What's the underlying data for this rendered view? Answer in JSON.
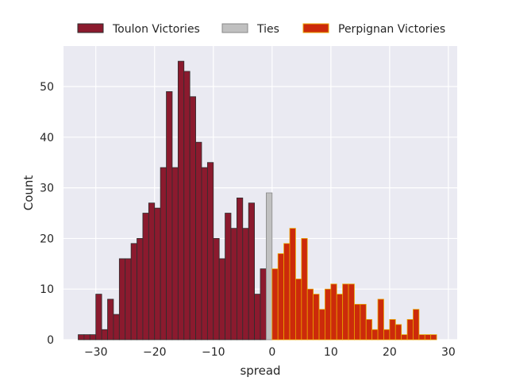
{
  "chart_data": {
    "type": "bar",
    "title": "",
    "xlabel": "spread",
    "ylabel": "Count",
    "xlim": [
      -35.5,
      31.5
    ],
    "ylim": [
      0,
      58
    ],
    "xticks": [
      -30,
      -20,
      -10,
      0,
      10,
      20,
      30
    ],
    "yticks": [
      0,
      10,
      20,
      30,
      40,
      50
    ],
    "grid": true,
    "bin_width": 1,
    "legend": {
      "placement": "top-center, above plot",
      "entries": [
        "Toulon Victories",
        "Ties",
        "Perpignan Victories"
      ]
    },
    "colors": {
      "background": "#eaeaf2",
      "grid": "#ffffff",
      "toulon_fill": "#8b1a2e",
      "toulon_edge": "#2e2e2e",
      "ties_fill": "#c0c0c0",
      "ties_edge": "#888888",
      "perpignan_fill": "#cc2a0b",
      "perpignan_edge": "#e8a400"
    },
    "series": [
      {
        "name": "Toulon Victories",
        "bins": [
          {
            "x": -33,
            "count": 1
          },
          {
            "x": -32,
            "count": 1
          },
          {
            "x": -31,
            "count": 1
          },
          {
            "x": -30,
            "count": 9
          },
          {
            "x": -29,
            "count": 2
          },
          {
            "x": -28,
            "count": 8
          },
          {
            "x": -27,
            "count": 5
          },
          {
            "x": -26,
            "count": 16
          },
          {
            "x": -25,
            "count": 16
          },
          {
            "x": -24,
            "count": 19
          },
          {
            "x": -23,
            "count": 20
          },
          {
            "x": -22,
            "count": 25
          },
          {
            "x": -21,
            "count": 27
          },
          {
            "x": -20,
            "count": 26
          },
          {
            "x": -19,
            "count": 34
          },
          {
            "x": -18,
            "count": 49
          },
          {
            "x": -17,
            "count": 34
          },
          {
            "x": -16,
            "count": 55
          },
          {
            "x": -15,
            "count": 53
          },
          {
            "x": -14,
            "count": 48
          },
          {
            "x": -13,
            "count": 39
          },
          {
            "x": -12,
            "count": 34
          },
          {
            "x": -11,
            "count": 35
          },
          {
            "x": -10,
            "count": 20
          },
          {
            "x": -9,
            "count": 16
          },
          {
            "x": -8,
            "count": 25
          },
          {
            "x": -7,
            "count": 22
          },
          {
            "x": -6,
            "count": 28
          },
          {
            "x": -5,
            "count": 22
          },
          {
            "x": -4,
            "count": 27
          },
          {
            "x": -3,
            "count": 9
          },
          {
            "x": -2,
            "count": 14
          }
        ]
      },
      {
        "name": "Ties",
        "bins": [
          {
            "x": -1,
            "count": 29
          }
        ]
      },
      {
        "name": "Perpignan Victories",
        "bins": [
          {
            "x": 0,
            "count": 14
          },
          {
            "x": 1,
            "count": 17
          },
          {
            "x": 2,
            "count": 19
          },
          {
            "x": 3,
            "count": 22
          },
          {
            "x": 4,
            "count": 12
          },
          {
            "x": 5,
            "count": 20
          },
          {
            "x": 6,
            "count": 10
          },
          {
            "x": 7,
            "count": 9
          },
          {
            "x": 8,
            "count": 6
          },
          {
            "x": 9,
            "count": 10
          },
          {
            "x": 10,
            "count": 11
          },
          {
            "x": 11,
            "count": 9
          },
          {
            "x": 12,
            "count": 11
          },
          {
            "x": 13,
            "count": 11
          },
          {
            "x": 14,
            "count": 7
          },
          {
            "x": 15,
            "count": 7
          },
          {
            "x": 16,
            "count": 4
          },
          {
            "x": 17,
            "count": 2
          },
          {
            "x": 18,
            "count": 8
          },
          {
            "x": 19,
            "count": 2
          },
          {
            "x": 20,
            "count": 4
          },
          {
            "x": 21,
            "count": 3
          },
          {
            "x": 22,
            "count": 1
          },
          {
            "x": 23,
            "count": 4
          },
          {
            "x": 24,
            "count": 6
          },
          {
            "x": 25,
            "count": 1
          },
          {
            "x": 26,
            "count": 1
          },
          {
            "x": 27,
            "count": 1
          }
        ]
      }
    ]
  }
}
